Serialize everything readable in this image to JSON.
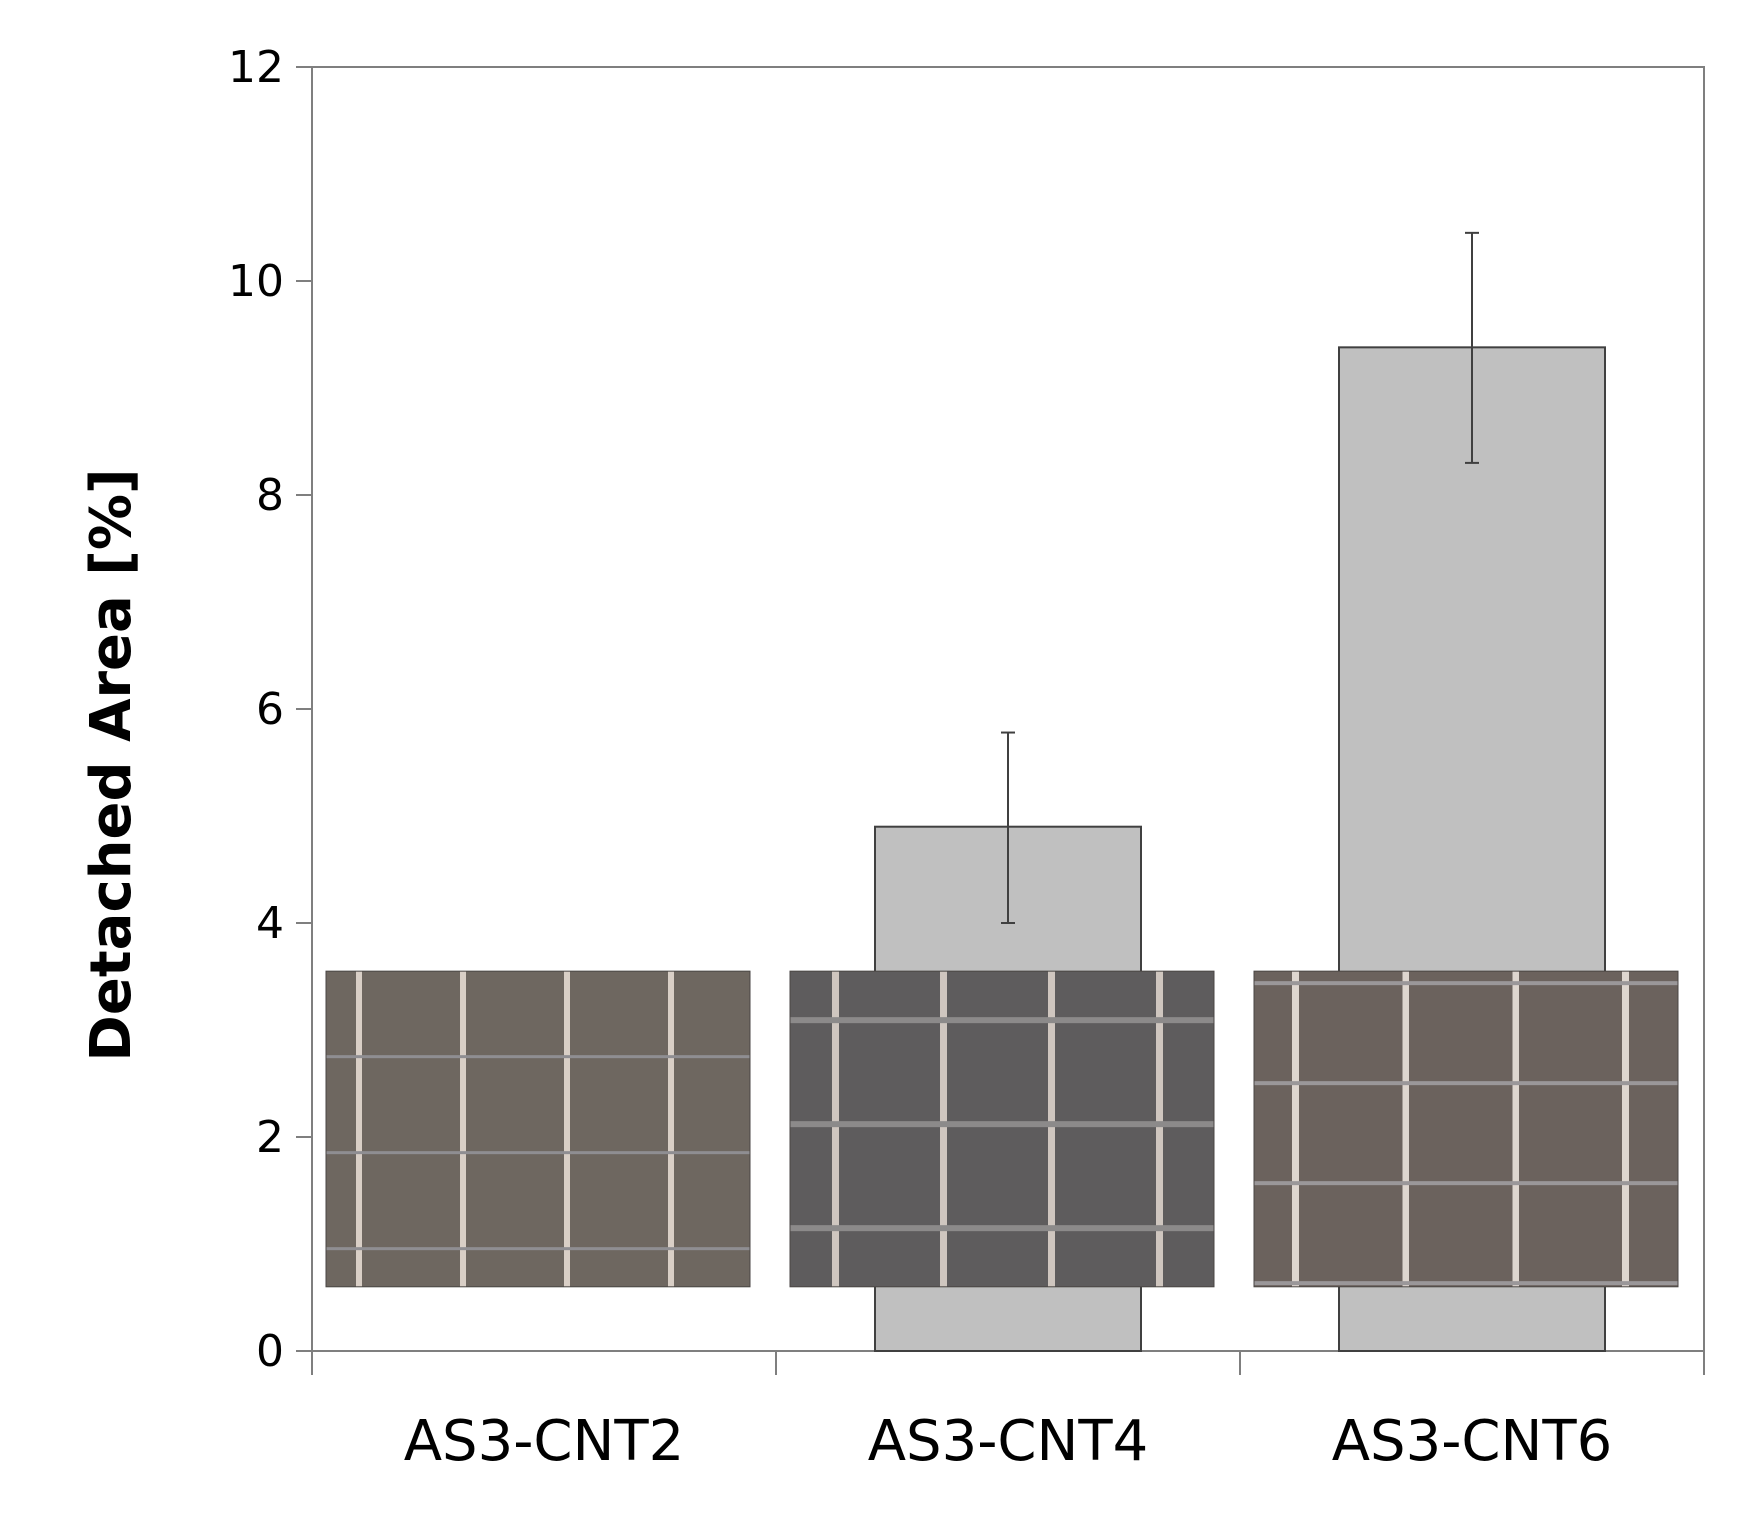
{
  "chart_data": {
    "type": "bar",
    "title": "",
    "xlabel": "",
    "ylabel": "Detached Area [%]",
    "ylim": [
      0,
      12
    ],
    "yticks": [
      0,
      2,
      4,
      6,
      8,
      10,
      12
    ],
    "categories": [
      "AS3-CNT2",
      "AS3-CNT4",
      "AS3-CNT6"
    ],
    "values": [
      0,
      4.9,
      9.38
    ],
    "error_low": [
      0,
      4.0,
      8.3
    ],
    "error_high": [
      0,
      5.78,
      10.45
    ],
    "grid": false,
    "bar_color": "#c0c0c0",
    "inset_images": [
      {
        "depicts": "cross-cut adhesion test micrograph",
        "category": "AS3-CNT2",
        "span_y": [
          0.6,
          3.55
        ]
      },
      {
        "depicts": "cross-cut adhesion test micrograph",
        "category": "AS3-CNT4",
        "span_y": [
          0.6,
          3.55
        ]
      },
      {
        "depicts": "cross-cut adhesion test micrograph",
        "category": "AS3-CNT6",
        "span_y": [
          0.6,
          3.55
        ]
      }
    ]
  }
}
